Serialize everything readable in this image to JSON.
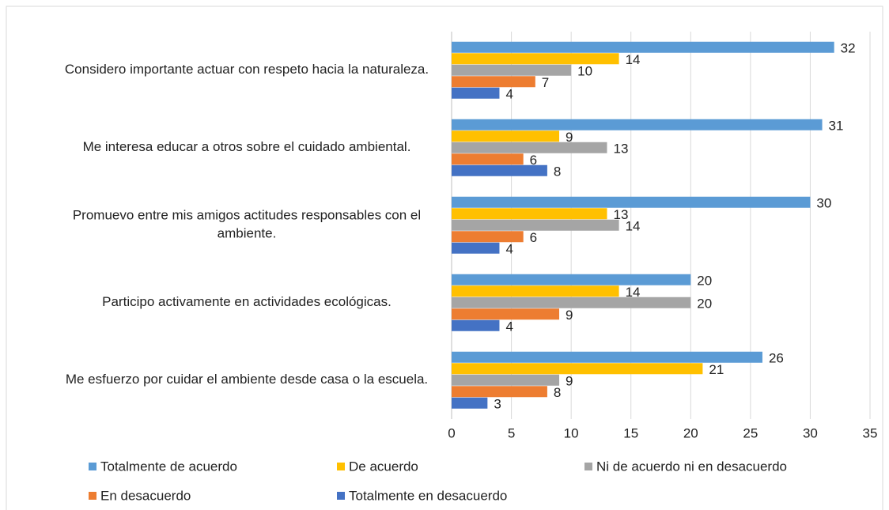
{
  "chart_data": {
    "type": "bar",
    "orientation": "horizontal",
    "categories": [
      "Considero importante actuar con respeto hacia la naturaleza.",
      "Me interesa educar a otros sobre el cuidado ambiental.",
      "Promuevo entre mis amigos actitudes responsables con el ambiente.",
      "Participo activamente en actividades ecológicas.",
      "Me esfuerzo por cuidar el ambiente desde casa o la escuela."
    ],
    "series": [
      {
        "name": "Totalmente de acuerdo",
        "color": "#5b9bd5",
        "values": [
          32,
          31,
          30,
          20,
          26
        ]
      },
      {
        "name": "De acuerdo",
        "color": "#ffc000",
        "values": [
          14,
          9,
          13,
          14,
          21
        ]
      },
      {
        "name": "Ni de acuerdo ni en desacuerdo",
        "color": "#a5a5a5",
        "values": [
          10,
          13,
          14,
          20,
          9
        ]
      },
      {
        "name": "En desacuerdo",
        "color": "#ed7d31",
        "values": [
          7,
          6,
          6,
          9,
          8
        ]
      },
      {
        "name": "Totalmente en desacuerdo",
        "color": "#4472c4",
        "values": [
          4,
          8,
          4,
          4,
          3
        ]
      }
    ],
    "xlim": [
      0,
      35
    ],
    "xticks": [
      0,
      5,
      10,
      15,
      20,
      25,
      30,
      35
    ],
    "grid": true,
    "legend": "bottom"
  }
}
